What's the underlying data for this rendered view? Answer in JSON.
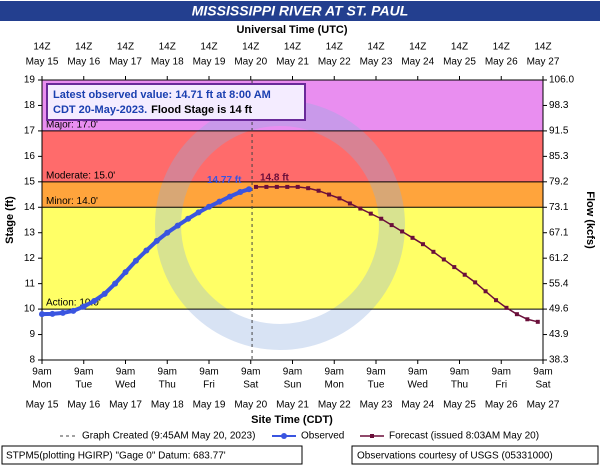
{
  "chart_data": {
    "type": "hydrograph",
    "title": "MISSISSIPPI RIVER AT ST. PAUL",
    "top_axis": {
      "title": "Universal Time (UTC)",
      "hours": [
        "14Z",
        "14Z",
        "14Z",
        "14Z",
        "14Z",
        "14Z",
        "14Z",
        "14Z",
        "14Z",
        "14Z",
        "14Z",
        "14Z",
        "14Z"
      ],
      "dates": [
        "May 15",
        "May 16",
        "May 17",
        "May 18",
        "May 19",
        "May 20",
        "May 21",
        "May 22",
        "May 23",
        "May 24",
        "May 25",
        "May 26",
        "May 27"
      ]
    },
    "bottom_axis": {
      "title": "Site Time (CDT)",
      "hours": [
        "9am",
        "9am",
        "9am",
        "9am",
        "9am",
        "9am",
        "9am",
        "9am",
        "9am",
        "9am",
        "9am",
        "9am",
        "9am"
      ],
      "weekdays": [
        "Mon",
        "Tue",
        "Wed",
        "Thu",
        "Fri",
        "Sat",
        "Sun",
        "Mon",
        "Tue",
        "Wed",
        "Thu",
        "Fri",
        "Sat"
      ],
      "dates": [
        "May 15",
        "May 16",
        "May 17",
        "May 18",
        "May 19",
        "May 20",
        "May 21",
        "May 22",
        "May 23",
        "May 24",
        "May 25",
        "May 26",
        "May 27"
      ]
    },
    "xlim": [
      "2023-05-15T09:00",
      "2023-05-27T09:00"
    ],
    "xticks": [
      "2023-05-15T09:00",
      "2023-05-16T09:00",
      "2023-05-17T09:00",
      "2023-05-18T09:00",
      "2023-05-19T09:00",
      "2023-05-20T09:00",
      "2023-05-21T09:00",
      "2023-05-22T09:00",
      "2023-05-23T09:00",
      "2023-05-24T09:00",
      "2023-05-25T09:00",
      "2023-05-26T09:00",
      "2023-05-27T09:00"
    ],
    "ylabel": "Stage (ft)",
    "ylim": [
      8,
      19
    ],
    "yticks": [
      8,
      9,
      10,
      11,
      12,
      13,
      14,
      15,
      16,
      17,
      18,
      19
    ],
    "y2label": "Flow (kcfs)",
    "y2ticks": [
      38.3,
      43.9,
      49.6,
      55.4,
      61.2,
      67.1,
      73.1,
      79.2,
      85.3,
      91.5,
      98.3,
      {
        "value": 106,
        "label": "106.0"
      }
    ],
    "flood_stages": [
      {
        "label": "Action: 10.0'",
        "value": 10,
        "color": "#ffff66"
      },
      {
        "label": "Minor: 14.0'",
        "value": 14,
        "color": "#ffa43c"
      },
      {
        "label": "Moderate: 15.0'",
        "value": 15,
        "color": "#ff6b6b"
      },
      {
        "label": "Major: 17.0'",
        "value": 17,
        "color": "#e98ef0"
      }
    ],
    "info_box": [
      "Latest observed value: 14.71 ft at 8:00 AM",
      "CDT 20-May-2023.",
      "Flood Stage is 14 ft"
    ],
    "graph_created": {
      "label": "Graph Created (9:45AM May 20, 2023)",
      "x": "2023-05-20T09:45"
    },
    "series": [
      {
        "name": "Observed",
        "color": "#3a55e0",
        "peak_label": "14.77 ft",
        "x": [
          "2023-05-15T09:00",
          "2023-05-15T15:00",
          "2023-05-15T21:00",
          "2023-05-16T03:00",
          "2023-05-16T09:00",
          "2023-05-16T15:00",
          "2023-05-16T21:00",
          "2023-05-17T03:00",
          "2023-05-17T09:00",
          "2023-05-17T15:00",
          "2023-05-17T21:00",
          "2023-05-18T03:00",
          "2023-05-18T09:00",
          "2023-05-18T15:00",
          "2023-05-18T21:00",
          "2023-05-19T03:00",
          "2023-05-19T09:00",
          "2023-05-19T15:00",
          "2023-05-19T21:00",
          "2023-05-20T03:00",
          "2023-05-20T08:00"
        ],
        "values": [
          9.8,
          9.81,
          9.85,
          9.93,
          10.1,
          10.32,
          10.6,
          11.0,
          11.45,
          11.9,
          12.3,
          12.68,
          13.0,
          13.28,
          13.55,
          13.8,
          14.02,
          14.22,
          14.42,
          14.6,
          14.71
        ]
      },
      {
        "name": "Forecast (issued 8:03AM May 20)",
        "color": "#6b0f3a",
        "peak_label": "14.8 ft",
        "x": [
          "2023-05-20T12:00",
          "2023-05-20T18:00",
          "2023-05-21T00:00",
          "2023-05-21T06:00",
          "2023-05-21T12:00",
          "2023-05-21T18:00",
          "2023-05-22T00:00",
          "2023-05-22T06:00",
          "2023-05-22T12:00",
          "2023-05-22T18:00",
          "2023-05-23T00:00",
          "2023-05-23T06:00",
          "2023-05-23T12:00",
          "2023-05-23T18:00",
          "2023-05-24T00:00",
          "2023-05-24T06:00",
          "2023-05-24T12:00",
          "2023-05-24T18:00",
          "2023-05-25T00:00",
          "2023-05-25T06:00",
          "2023-05-25T12:00",
          "2023-05-25T18:00",
          "2023-05-26T00:00",
          "2023-05-26T06:00",
          "2023-05-26T12:00",
          "2023-05-26T18:00",
          "2023-05-27T00:00",
          "2023-05-27T06:00"
        ],
        "values": [
          14.8,
          14.8,
          14.8,
          14.8,
          14.8,
          14.75,
          14.65,
          14.5,
          14.35,
          14.15,
          13.95,
          13.75,
          13.55,
          13.3,
          13.05,
          12.8,
          12.55,
          12.25,
          11.95,
          11.65,
          11.35,
          11.05,
          10.7,
          10.35,
          10.05,
          9.8,
          9.6,
          9.5
        ]
      }
    ],
    "footer": {
      "left": "STPM5(plotting HGIRP) \"Gage 0\" Datum: 683.77'",
      "right": "Observations courtesy of USGS (05331000)"
    }
  }
}
